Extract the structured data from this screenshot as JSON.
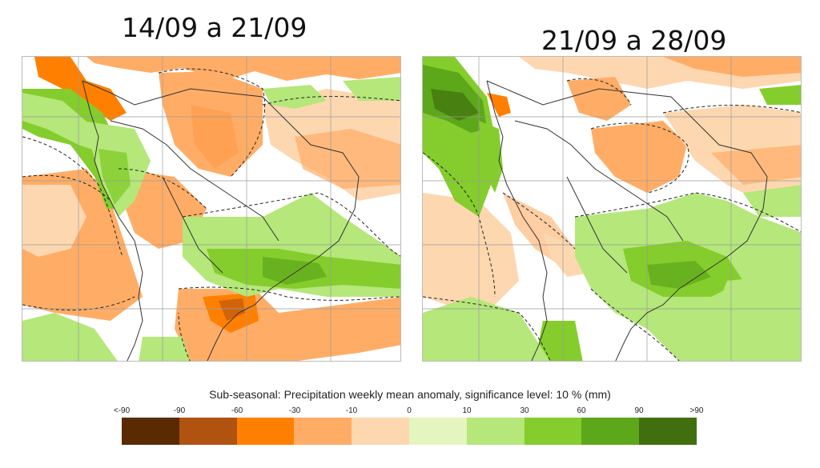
{
  "maps": [
    {
      "period_label": "14/09 a 21/09"
    },
    {
      "period_label": "21/09 a 28/09"
    }
  ],
  "colorbar": {
    "title": "Sub-seasonal: Precipitation weekly mean anomaly, significance level: 10 % (mm)",
    "tick_labels": [
      "<-90",
      "-90",
      "-60",
      "-30",
      "-10",
      "0",
      "10",
      "30",
      "60",
      "90",
      ">90"
    ],
    "colors": [
      "#5a2a00",
      "#b05210",
      "#ff8000",
      "#ffad66",
      "#fdd7b0",
      "#e4f5bf",
      "#b5e77a",
      "#84cd2c",
      "#5da71a",
      "#416f10"
    ]
  }
}
